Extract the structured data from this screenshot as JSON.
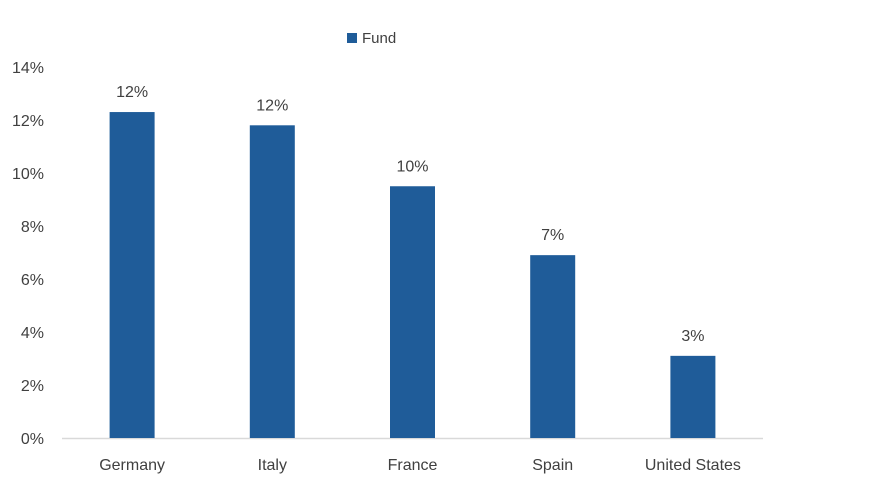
{
  "chart_data": {
    "type": "bar",
    "title": "",
    "xlabel": "",
    "ylabel": "",
    "categories": [
      "Germany",
      "Italy",
      "France",
      "Spain",
      "United States"
    ],
    "series": [
      {
        "name": "Fund",
        "values": [
          12.3,
          11.8,
          9.5,
          6.9,
          3.1
        ],
        "color": "#1F5C99"
      }
    ],
    "data_labels": [
      "12%",
      "12%",
      "10%",
      "7%",
      "3%"
    ],
    "ylim": [
      0,
      14
    ],
    "y_ticks": [
      0,
      2,
      4,
      6,
      8,
      10,
      12,
      14
    ],
    "y_tick_labels": [
      "0%",
      "2%",
      "4%",
      "6%",
      "8%",
      "10%",
      "12%",
      "14%"
    ],
    "legend_position": "top-center",
    "grid": false,
    "axis_color": "#D9D9D9",
    "text_color": "#404040"
  }
}
